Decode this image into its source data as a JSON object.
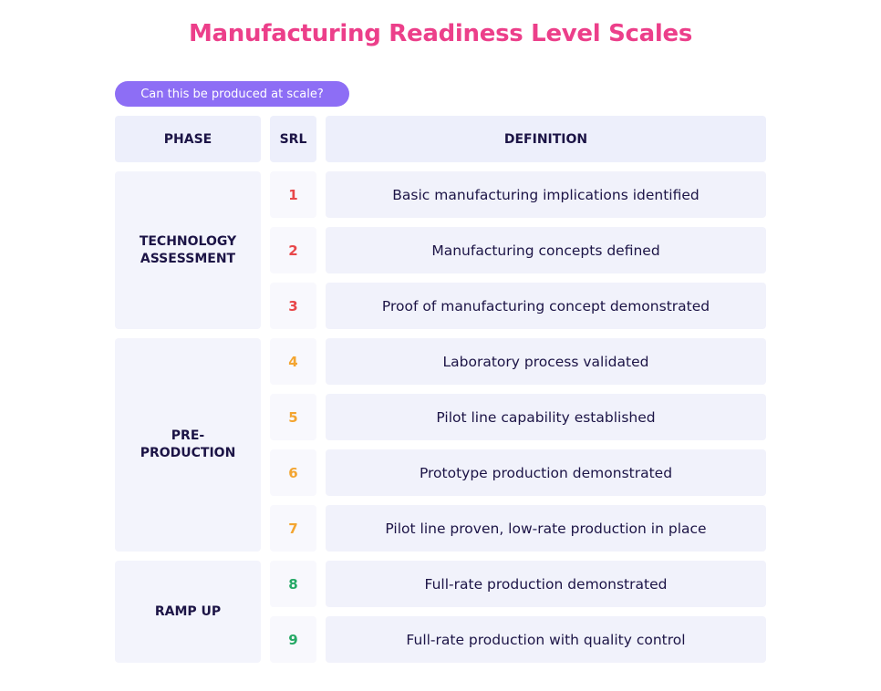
{
  "header": {
    "title": "Manufacturing Readiness Level Scales",
    "badge": "Can this be produced at scale?"
  },
  "table": {
    "columns": [
      "PHASE",
      "SRL",
      "DEFINITION"
    ],
    "groups": [
      {
        "phase": "TECHNOLOGY ASSESSMENT",
        "color": "#e8474a",
        "rows": [
          {
            "srl": 1,
            "definition": "Basic manufacturing implications identified"
          },
          {
            "srl": 2,
            "definition": "Manufacturing concepts defined"
          },
          {
            "srl": 3,
            "definition": "Proof of manufacturing concept demonstrated"
          }
        ]
      },
      {
        "phase": "PRE-PRODUCTION",
        "color": "#f3a531",
        "rows": [
          {
            "srl": 4,
            "definition": "Laboratory process validated"
          },
          {
            "srl": 5,
            "definition": "Pilot line capability established"
          },
          {
            "srl": 6,
            "definition": "Prototype production demonstrated"
          },
          {
            "srl": 7,
            "definition": "Pilot line proven, low-rate production in place"
          }
        ]
      },
      {
        "phase": "RAMP UP",
        "color": "#25a865",
        "rows": [
          {
            "srl": 8,
            "definition": "Full-rate production demonstrated"
          },
          {
            "srl": 9,
            "definition": "Full-rate production with quality control"
          }
        ]
      }
    ]
  }
}
